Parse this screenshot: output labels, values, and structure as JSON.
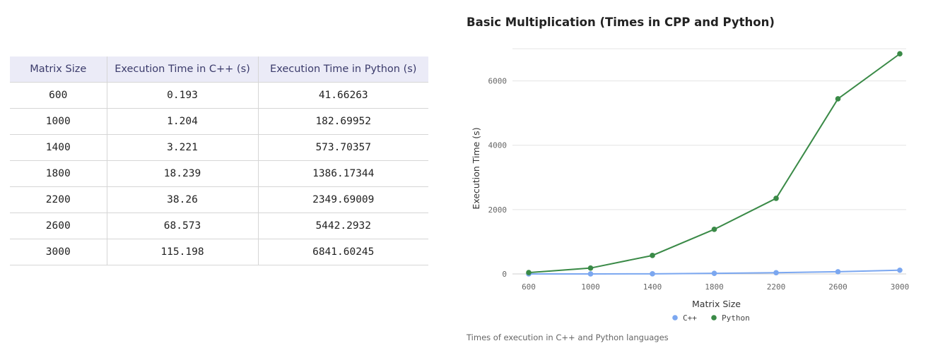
{
  "table": {
    "headers": [
      "Matrix Size",
      "Execution Time in C++ (s)",
      "Execution Time in Python (s)"
    ],
    "rows": [
      [
        "600",
        "0.193",
        "41.66263"
      ],
      [
        "1000",
        "1.204",
        "182.69952"
      ],
      [
        "1400",
        "3.221",
        "573.70357"
      ],
      [
        "1800",
        "18.239",
        "1386.17344"
      ],
      [
        "2200",
        "38.26",
        "2349.69009"
      ],
      [
        "2600",
        "68.573",
        "5442.2932"
      ],
      [
        "3000",
        "115.198",
        "6841.60245"
      ]
    ]
  },
  "chart_data": {
    "type": "line",
    "title": "Basic Multiplication (Times in CPP and Python)",
    "xlabel": "Matrix Size",
    "ylabel": "Execution Time (s)",
    "x": [
      600,
      1000,
      1400,
      1800,
      2200,
      2600,
      3000
    ],
    "x_ticks": [
      "600",
      "1000",
      "1400",
      "1800",
      "2200",
      "2600",
      "3000"
    ],
    "y_ticks": [
      0,
      2000,
      4000,
      6000
    ],
    "ylim": [
      0,
      7000
    ],
    "grid": true,
    "legend_position": "bottom",
    "series": [
      {
        "name": "C++",
        "color": "#7ba7f0",
        "values": [
          0.193,
          1.204,
          3.221,
          18.239,
          38.26,
          68.573,
          115.198
        ]
      },
      {
        "name": "Python",
        "color": "#3a8a47",
        "values": [
          41.66263,
          182.69952,
          573.70357,
          1386.17344,
          2349.69009,
          5442.2932,
          6841.60245
        ]
      }
    ],
    "caption": "Times of execution in C++ and Python languages"
  }
}
